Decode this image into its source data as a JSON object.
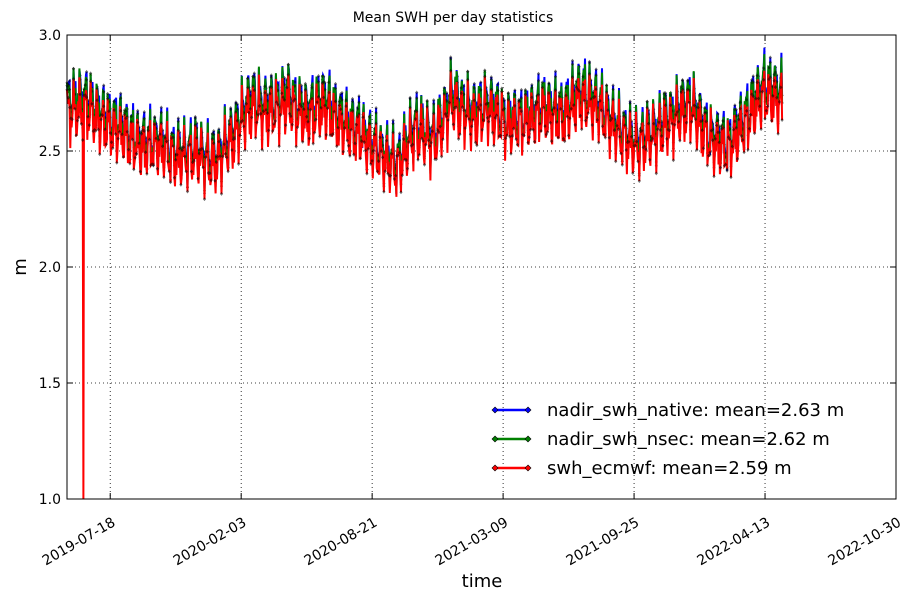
{
  "chart_data": {
    "type": "line",
    "title": "Mean SWH per day statistics",
    "xlabel": "time",
    "ylabel": "m",
    "ylim": [
      1.0,
      3.0
    ],
    "xlim": [
      "2019-05-13",
      "2022-10-30"
    ],
    "y_ticks": [
      "1.0",
      "1.5",
      "2.0",
      "2.5",
      "3.0"
    ],
    "y_tick_values": [
      1.0,
      1.5,
      2.0,
      2.5,
      3.0
    ],
    "x_ticks": [
      "2019-07-18",
      "2020-02-03",
      "2020-08-21",
      "2021-03-09",
      "2021-09-25",
      "2022-04-13",
      "2022-10-30"
    ],
    "grid": true,
    "legend_position": "lower-right",
    "x": [
      "2019-05-13",
      "2019-06-10",
      "2019-07-08",
      "2019-08-05",
      "2019-09-02",
      "2019-09-30",
      "2019-10-28",
      "2019-11-25",
      "2019-12-23",
      "2020-01-20",
      "2020-02-17",
      "2020-03-16",
      "2020-04-13",
      "2020-05-11",
      "2020-06-08",
      "2020-07-06",
      "2020-08-03",
      "2020-08-31",
      "2020-09-28",
      "2020-10-26",
      "2020-11-23",
      "2020-12-21",
      "2021-01-18",
      "2021-02-15",
      "2021-03-15",
      "2021-04-12",
      "2021-05-10",
      "2021-06-07",
      "2021-07-05",
      "2021-08-02",
      "2021-08-30",
      "2021-09-27",
      "2021-10-25",
      "2021-11-22",
      "2021-12-20",
      "2022-01-17",
      "2022-02-14",
      "2022-03-14",
      "2022-04-11",
      "2022-05-09"
    ],
    "series": [
      {
        "name": "nadir_swh_native: mean=2.63 m",
        "color": "#0000ff",
        "values": [
          2.72,
          2.74,
          2.66,
          2.62,
          2.55,
          2.56,
          2.5,
          2.52,
          2.47,
          2.58,
          2.74,
          2.7,
          2.76,
          2.68,
          2.74,
          2.65,
          2.6,
          2.52,
          2.46,
          2.63,
          2.57,
          2.76,
          2.68,
          2.72,
          2.64,
          2.66,
          2.71,
          2.68,
          2.78,
          2.72,
          2.62,
          2.55,
          2.6,
          2.67,
          2.73,
          2.58,
          2.54,
          2.66,
          2.8,
          2.76
        ]
      },
      {
        "name": "nadir_swh_nsec: mean=2.62 m",
        "color": "#008000",
        "values": [
          2.71,
          2.73,
          2.65,
          2.61,
          2.54,
          2.55,
          2.49,
          2.51,
          2.46,
          2.57,
          2.73,
          2.69,
          2.75,
          2.67,
          2.73,
          2.64,
          2.59,
          2.51,
          2.45,
          2.62,
          2.56,
          2.75,
          2.67,
          2.71,
          2.63,
          2.65,
          2.7,
          2.67,
          2.77,
          2.71,
          2.61,
          2.54,
          2.59,
          2.66,
          2.72,
          2.57,
          2.53,
          2.65,
          2.79,
          2.75
        ]
      },
      {
        "name": "swh_ecmwf: mean=2.59 m",
        "color": "#ff0000",
        "values": [
          2.66,
          2.68,
          2.61,
          2.57,
          2.51,
          2.52,
          2.46,
          2.48,
          2.43,
          2.54,
          2.68,
          2.65,
          2.7,
          2.63,
          2.68,
          2.6,
          2.56,
          2.48,
          2.42,
          2.58,
          2.53,
          2.7,
          2.63,
          2.67,
          2.6,
          2.62,
          2.66,
          2.63,
          2.72,
          2.67,
          2.58,
          2.51,
          2.56,
          2.62,
          2.68,
          2.54,
          2.5,
          2.61,
          2.74,
          2.7
        ]
      }
    ],
    "outliers": [
      {
        "series": "swh_ecmwf: mean=2.59 m",
        "x": "2019-06-07",
        "y": 1.0
      }
    ]
  }
}
